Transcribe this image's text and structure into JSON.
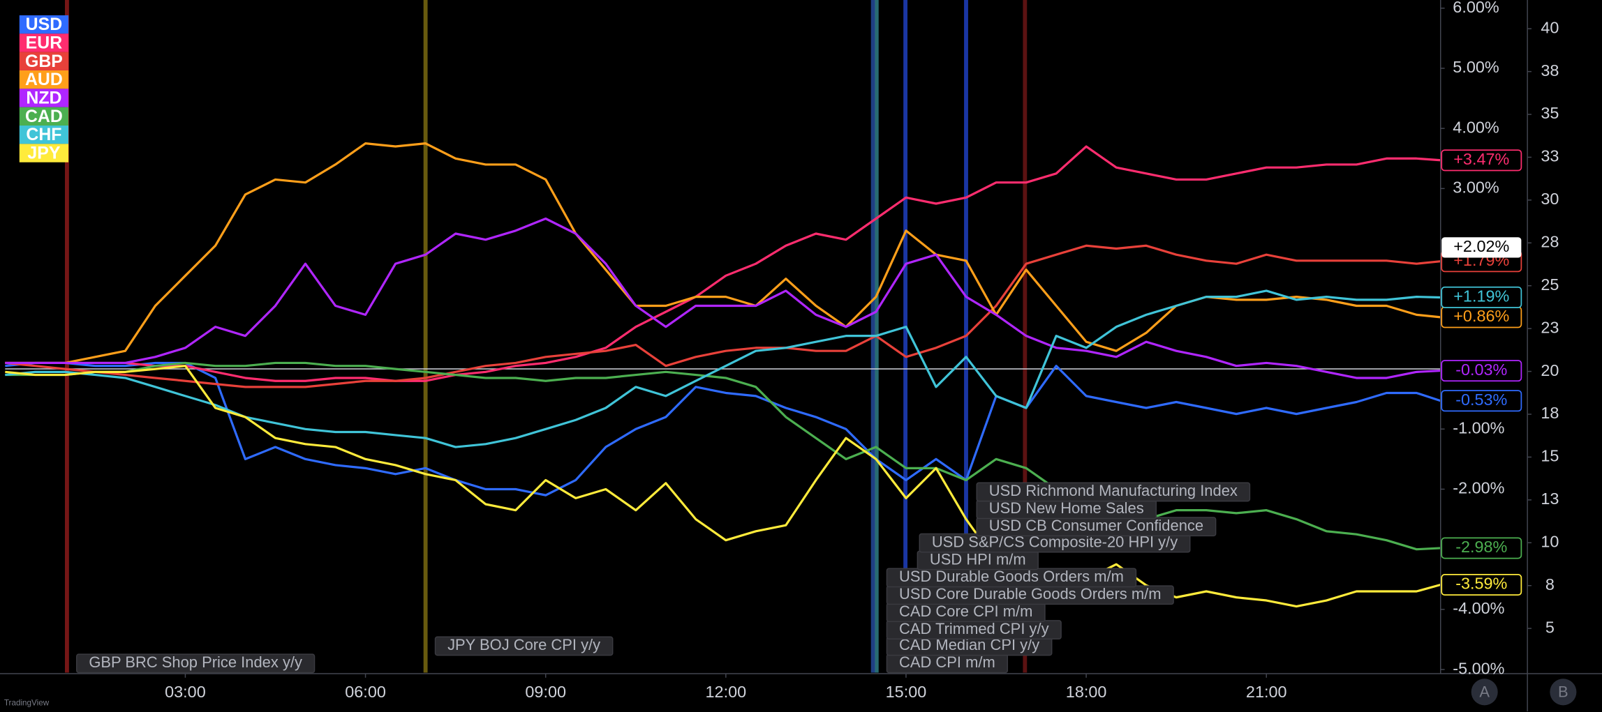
{
  "chart_data": {
    "type": "line",
    "x": [
      0,
      0.5,
      1,
      1.5,
      2,
      2.5,
      3,
      3.5,
      4,
      4.5,
      5,
      5.5,
      6,
      6.5,
      7,
      7.5,
      8,
      8.5,
      9,
      9.5,
      10,
      10.5,
      11,
      11.5,
      12,
      12.5,
      13,
      13.5,
      14,
      14.5,
      15,
      15.5,
      16,
      16.5,
      17,
      17.5,
      18,
      18.5,
      19,
      19.5,
      20,
      20.5,
      21,
      21.5,
      22,
      22.5,
      23,
      23.5,
      23.9
    ],
    "xlim": [
      0,
      23.9
    ],
    "xticks": [
      {
        "value": 3,
        "label": "03:00"
      },
      {
        "value": 6,
        "label": "06:00"
      },
      {
        "value": 9,
        "label": "09:00"
      },
      {
        "value": 12,
        "label": "12:00"
      },
      {
        "value": 15,
        "label": "15:00"
      },
      {
        "value": 18,
        "label": "18:00"
      },
      {
        "value": 21,
        "label": "21:00"
      }
    ],
    "ylim": [
      -5,
      6
    ],
    "yticks": [
      {
        "value": 6,
        "label": "6.00%"
      },
      {
        "value": 5,
        "label": "5.00%"
      },
      {
        "value": 4,
        "label": "4.00%"
      },
      {
        "value": 3,
        "label": "3.00%"
      },
      {
        "value": -1,
        "label": "-1.00%"
      },
      {
        "value": -2,
        "label": "-2.00%"
      },
      {
        "value": -4,
        "label": "-4.00%"
      },
      {
        "value": -5,
        "label": "-5.00%"
      }
    ],
    "y2lim": [
      2.6,
      41.2
    ],
    "y2ticks": [
      40,
      {
        "value": 37.5,
        "label": "38"
      },
      35,
      {
        "value": 32.5,
        "label": "33"
      },
      30,
      {
        "value": 27.5,
        "label": "28"
      },
      25,
      {
        "value": 22.5,
        "label": "23"
      },
      20,
      {
        "value": 17.5,
        "label": "18"
      },
      15,
      {
        "value": 12.5,
        "label": "13"
      },
      10,
      {
        "value": 7.5,
        "label": "8"
      },
      5
    ],
    "series": [
      {
        "name": "USD",
        "color": "#2f6bff",
        "last_label": "-0.53%",
        "values": [
          0.05,
          0.1,
          0.1,
          0.05,
          0.05,
          0.1,
          0.1,
          -0.15,
          -1.5,
          -1.3,
          -1.5,
          -1.6,
          -1.65,
          -1.75,
          -1.65,
          -1.85,
          -2.0,
          -2.0,
          -2.1,
          -1.85,
          -1.3,
          -1.0,
          -0.8,
          -0.3,
          -0.4,
          -0.45,
          -0.65,
          -0.8,
          -1.0,
          -1.5,
          -1.85,
          -1.5,
          -1.85,
          -0.45,
          -0.65,
          0.05,
          -0.45,
          -0.55,
          -0.65,
          -0.55,
          -0.65,
          -0.75,
          -0.65,
          -0.75,
          -0.65,
          -0.55,
          -0.4,
          -0.4,
          -0.53
        ]
      },
      {
        "name": "EUR",
        "color": "#ff2d6f",
        "last_label": "+3.47%",
        "values": [
          0.1,
          0.1,
          0.1,
          0.1,
          0.1,
          0.05,
          0.05,
          -0.05,
          -0.15,
          -0.2,
          -0.2,
          -0.15,
          -0.15,
          -0.2,
          -0.2,
          -0.1,
          -0.05,
          0.05,
          0.1,
          0.2,
          0.35,
          0.7,
          0.95,
          1.2,
          1.55,
          1.75,
          2.05,
          2.25,
          2.15,
          2.5,
          2.85,
          2.75,
          2.85,
          3.1,
          3.1,
          3.25,
          3.7,
          3.35,
          3.25,
          3.15,
          3.15,
          3.25,
          3.35,
          3.35,
          3.4,
          3.4,
          3.5,
          3.5,
          3.47
        ]
      },
      {
        "name": "GBP",
        "color": "#e8413a",
        "last_label": "+1.79%",
        "values": [
          0.1,
          0.05,
          0.0,
          -0.05,
          -0.1,
          -0.15,
          -0.2,
          -0.25,
          -0.3,
          -0.3,
          -0.3,
          -0.25,
          -0.2,
          -0.2,
          -0.15,
          -0.05,
          0.05,
          0.1,
          0.2,
          0.25,
          0.3,
          0.4,
          0.05,
          0.2,
          0.3,
          0.35,
          0.35,
          0.3,
          0.3,
          0.55,
          0.2,
          0.35,
          0.55,
          1.05,
          1.75,
          1.9,
          2.05,
          2.0,
          2.05,
          1.9,
          1.8,
          1.75,
          1.9,
          1.8,
          1.8,
          1.8,
          1.8,
          1.75,
          1.79
        ]
      },
      {
        "name": "AUD",
        "color": "#ff9f1a",
        "last_label": "+0.86%",
        "values": [
          0.1,
          0.1,
          0.1,
          0.2,
          0.3,
          1.05,
          1.55,
          2.05,
          2.9,
          3.15,
          3.1,
          3.4,
          3.75,
          3.7,
          3.75,
          3.5,
          3.4,
          3.4,
          3.15,
          2.25,
          1.65,
          1.05,
          1.05,
          1.2,
          1.2,
          1.05,
          1.5,
          1.05,
          0.7,
          1.2,
          2.3,
          1.9,
          1.8,
          0.9,
          1.65,
          1.05,
          0.45,
          0.3,
          0.6,
          1.05,
          1.2,
          1.15,
          1.15,
          1.2,
          1.15,
          1.05,
          1.05,
          0.9,
          0.86
        ]
      },
      {
        "name": "NZD",
        "color": "#b026ff",
        "last_label": "-0.03%",
        "values": [
          0.1,
          0.1,
          0.1,
          0.1,
          0.1,
          0.2,
          0.35,
          0.7,
          0.55,
          1.05,
          1.75,
          1.05,
          0.9,
          1.75,
          1.9,
          2.25,
          2.15,
          2.3,
          2.5,
          2.25,
          1.75,
          1.05,
          0.7,
          1.05,
          1.05,
          1.05,
          1.3,
          0.9,
          0.7,
          0.95,
          1.75,
          1.9,
          1.2,
          0.9,
          0.55,
          0.35,
          0.3,
          0.2,
          0.45,
          0.3,
          0.2,
          0.05,
          0.1,
          0.05,
          -0.05,
          -0.15,
          -0.15,
          -0.05,
          -0.03
        ]
      },
      {
        "name": "CAD",
        "color": "#4caf50",
        "last_label": "-2.98%",
        "values": [
          -0.1,
          -0.1,
          -0.1,
          -0.05,
          -0.05,
          0.05,
          0.1,
          0.05,
          0.05,
          0.1,
          0.1,
          0.05,
          0.05,
          0.0,
          -0.05,
          -0.1,
          -0.15,
          -0.15,
          -0.2,
          -0.15,
          -0.15,
          -0.1,
          -0.05,
          -0.1,
          -0.15,
          -0.3,
          -0.8,
          -1.15,
          -1.5,
          -1.3,
          -1.65,
          -1.65,
          -1.85,
          -1.5,
          -1.65,
          -2.0,
          -2.15,
          -2.35,
          -2.5,
          -2.35,
          -2.35,
          -2.4,
          -2.35,
          -2.5,
          -2.7,
          -2.75,
          -2.85,
          -3.0,
          -2.98
        ]
      },
      {
        "name": "CHF",
        "color": "#40c4d8",
        "last_label": "+1.19%",
        "values": [
          -0.1,
          -0.05,
          -0.05,
          -0.1,
          -0.15,
          -0.3,
          -0.45,
          -0.6,
          -0.8,
          -0.9,
          -1.0,
          -1.05,
          -1.05,
          -1.1,
          -1.15,
          -1.3,
          -1.25,
          -1.15,
          -1.0,
          -0.85,
          -0.65,
          -0.3,
          -0.45,
          -0.2,
          0.05,
          0.3,
          0.35,
          0.45,
          0.55,
          0.55,
          0.7,
          -0.3,
          0.2,
          -0.45,
          -0.65,
          0.55,
          0.35,
          0.7,
          0.9,
          1.05,
          1.2,
          1.2,
          1.3,
          1.15,
          1.2,
          1.15,
          1.15,
          1.2,
          1.19
        ]
      },
      {
        "name": "JPY",
        "color": "#ffeb3b",
        "last_label": "-3.59%",
        "values": [
          -0.05,
          -0.1,
          -0.1,
          -0.05,
          -0.05,
          0.0,
          0.05,
          -0.65,
          -0.8,
          -1.15,
          -1.25,
          -1.3,
          -1.5,
          -1.6,
          -1.75,
          -1.85,
          -2.25,
          -2.35,
          -1.85,
          -2.15,
          -2.0,
          -2.35,
          -1.9,
          -2.5,
          -2.85,
          -2.7,
          -2.6,
          -1.85,
          -1.15,
          -1.5,
          -2.15,
          -1.65,
          -2.5,
          -3.2,
          -3.5,
          -3.7,
          -3.5,
          -3.25,
          -3.6,
          -3.8,
          -3.7,
          -3.8,
          -3.85,
          -3.95,
          -3.85,
          -3.7,
          -3.7,
          -3.7,
          -3.59
        ]
      }
    ],
    "crosshair_label": {
      "value": 2.02,
      "label": "+2.02%"
    },
    "events": [
      {
        "time": 1.03,
        "color": "#8b1a1a",
        "labels": [
          "GBP BRC Shop Price Index y/y"
        ]
      },
      {
        "time": 7.0,
        "color": "#7a6a10",
        "labels": [
          "JPY BOJ Core CPI y/y"
        ]
      },
      {
        "time": 14.51,
        "color": "#2f7f86",
        "labels": [
          "CAD CPI m/m",
          "CAD Median CPI y/y",
          "CAD Trimmed CPI y/y",
          "CAD Core CPI m/m"
        ]
      },
      {
        "time": 14.45,
        "color": "#244a9a",
        "labels": [
          "USD Core Durable Goods Orders m/m",
          "USD Durable Goods Orders m/m"
        ]
      },
      {
        "time": 14.99,
        "color": "#1e3fbf",
        "labels": [
          "USD HPI m/m",
          "USD S&P/CS Composite-20 HPI y/y"
        ]
      },
      {
        "time": 16.0,
        "color": "#1e3fbf",
        "labels": [
          "USD CB Consumer Confidence",
          "USD New Home Sales",
          "USD Richmond Manufacturing Index"
        ]
      },
      {
        "time": 16.98,
        "color": "#6b1515",
        "labels": []
      }
    ],
    "pane_buttons": [
      "A",
      "B"
    ],
    "watermark": "TradingView"
  }
}
